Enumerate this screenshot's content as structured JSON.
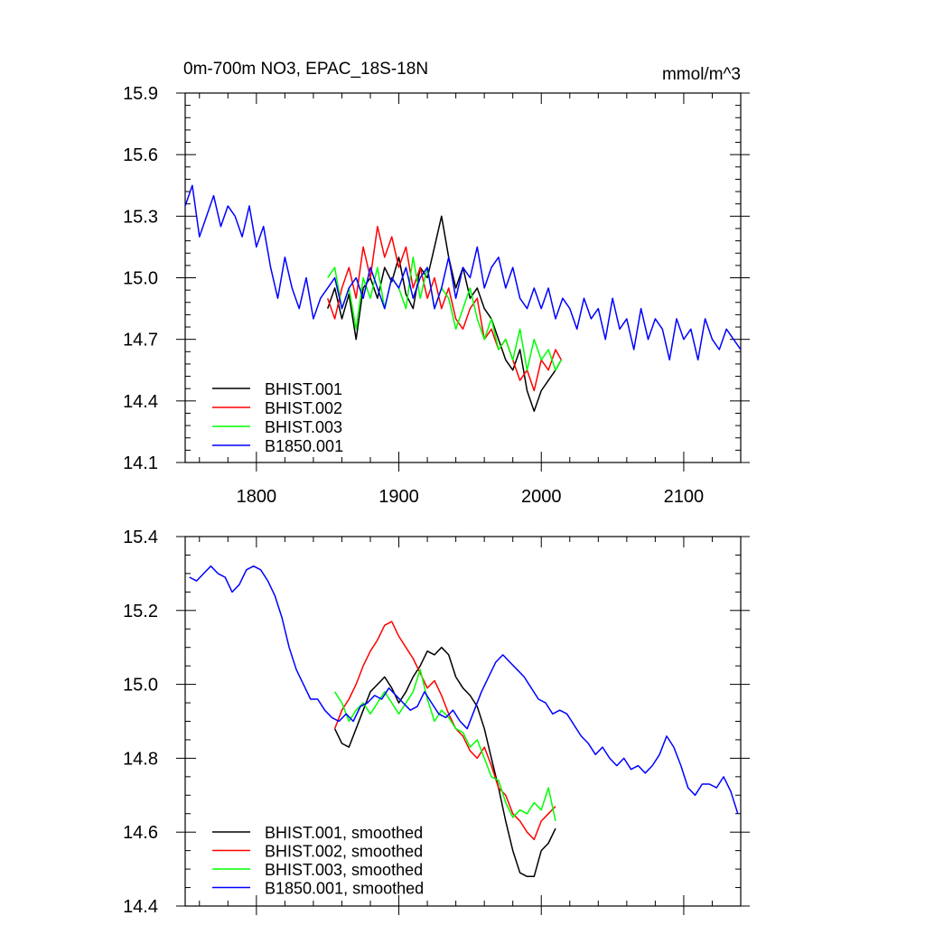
{
  "chart_data": [
    {
      "type": "line",
      "title": "0m-700m NO3, EPAC_18S-18N",
      "units": "mmol/m^3",
      "xlim": [
        1750,
        2140
      ],
      "ylim": [
        14.1,
        15.9
      ],
      "xticks": [
        1800,
        1900,
        2000,
        2100
      ],
      "yticks": [
        14.1,
        14.4,
        14.7,
        15.0,
        15.3,
        15.6,
        15.9
      ],
      "ytick_labels": [
        "14.1",
        "14.4",
        "14.7",
        "15.0",
        "15.3",
        "15.6",
        "15.9"
      ],
      "xtick_labels": [
        "1800",
        "1900",
        "2000",
        "2100"
      ],
      "legend_position": "bottom-left",
      "series": [
        {
          "name": "BHIST.001",
          "color": "#000000",
          "x": [
            1850,
            1855,
            1860,
            1865,
            1870,
            1875,
            1880,
            1885,
            1890,
            1895,
            1900,
            1905,
            1910,
            1915,
            1920,
            1925,
            1930,
            1935,
            1940,
            1945,
            1950,
            1955,
            1960,
            1965,
            1970,
            1975,
            1980,
            1985,
            1990,
            1995,
            2000,
            2005,
            2010,
            2014
          ],
          "y": [
            14.85,
            14.95,
            14.8,
            14.92,
            14.7,
            14.95,
            15.0,
            14.9,
            15.05,
            14.98,
            15.1,
            14.92,
            14.85,
            15.05,
            15.0,
            15.15,
            15.3,
            15.1,
            14.95,
            15.05,
            14.9,
            14.95,
            14.85,
            14.8,
            14.7,
            14.6,
            14.55,
            14.65,
            14.45,
            14.35,
            14.45,
            14.5,
            14.55,
            14.6
          ]
        },
        {
          "name": "BHIST.002",
          "color": "#ff0000",
          "x": [
            1850,
            1855,
            1860,
            1865,
            1870,
            1875,
            1880,
            1885,
            1890,
            1895,
            1900,
            1905,
            1910,
            1915,
            1920,
            1925,
            1930,
            1935,
            1940,
            1945,
            1950,
            1955,
            1960,
            1965,
            1970,
            1975,
            1980,
            1985,
            1990,
            1995,
            2000,
            2005,
            2010,
            2014
          ],
          "y": [
            14.9,
            14.8,
            14.95,
            15.05,
            14.9,
            15.15,
            15.0,
            15.25,
            15.1,
            15.2,
            15.05,
            15.15,
            14.95,
            15.05,
            14.9,
            15.0,
            14.85,
            14.95,
            14.8,
            14.75,
            14.85,
            14.9,
            14.7,
            14.75,
            14.65,
            14.7,
            14.6,
            14.5,
            14.55,
            14.45,
            14.6,
            14.55,
            14.65,
            14.6
          ]
        },
        {
          "name": "BHIST.003",
          "color": "#00ff00",
          "x": [
            1850,
            1855,
            1860,
            1865,
            1870,
            1875,
            1880,
            1885,
            1890,
            1895,
            1900,
            1905,
            1910,
            1915,
            1920,
            1925,
            1930,
            1935,
            1940,
            1945,
            1950,
            1955,
            1960,
            1965,
            1970,
            1975,
            1980,
            1985,
            1990,
            1995,
            2000,
            2005,
            2010,
            2014
          ],
          "y": [
            15.0,
            15.05,
            14.85,
            14.95,
            14.75,
            15.0,
            14.9,
            15.05,
            14.85,
            15.0,
            14.95,
            14.85,
            15.1,
            14.9,
            15.05,
            14.85,
            14.95,
            14.9,
            14.75,
            14.85,
            14.95,
            14.8,
            14.7,
            14.8,
            14.65,
            14.7,
            14.6,
            14.75,
            14.55,
            14.7,
            14.6,
            14.65,
            14.55,
            14.6
          ]
        },
        {
          "name": "B1850.001",
          "color": "#0000ff",
          "x": [
            1750,
            1755,
            1760,
            1765,
            1770,
            1775,
            1780,
            1785,
            1790,
            1795,
            1800,
            1805,
            1810,
            1815,
            1820,
            1825,
            1830,
            1835,
            1840,
            1845,
            1850,
            1855,
            1860,
            1865,
            1870,
            1875,
            1880,
            1885,
            1890,
            1895,
            1900,
            1905,
            1910,
            1915,
            1920,
            1925,
            1930,
            1935,
            1940,
            1945,
            1950,
            1955,
            1960,
            1965,
            1970,
            1975,
            1980,
            1985,
            1990,
            1995,
            2000,
            2005,
            2010,
            2015,
            2020,
            2025,
            2030,
            2035,
            2040,
            2045,
            2050,
            2055,
            2060,
            2065,
            2070,
            2075,
            2080,
            2085,
            2090,
            2095,
            2100,
            2105,
            2110,
            2115,
            2120,
            2125,
            2130,
            2135,
            2140
          ],
          "y": [
            15.35,
            15.45,
            15.2,
            15.3,
            15.4,
            15.25,
            15.35,
            15.3,
            15.2,
            15.35,
            15.15,
            15.25,
            15.05,
            14.9,
            15.1,
            14.95,
            14.85,
            15.0,
            14.8,
            14.9,
            14.95,
            15.0,
            14.85,
            14.95,
            15.0,
            14.9,
            15.05,
            14.95,
            14.85,
            15.0,
            14.95,
            15.05,
            14.9,
            15.0,
            15.05,
            14.85,
            14.95,
            15.1,
            14.9,
            15.05,
            15.0,
            15.15,
            14.95,
            15.05,
            15.1,
            14.95,
            15.05,
            14.9,
            14.85,
            14.95,
            14.85,
            14.95,
            14.8,
            14.9,
            14.85,
            14.75,
            14.9,
            14.8,
            14.85,
            14.7,
            14.9,
            14.75,
            14.8,
            14.65,
            14.85,
            14.7,
            14.8,
            14.75,
            14.6,
            14.8,
            14.7,
            14.75,
            14.6,
            14.8,
            14.7,
            14.65,
            14.75,
            14.7,
            14.65
          ]
        }
      ]
    },
    {
      "type": "line",
      "title": "",
      "xlim": [
        1750,
        2140
      ],
      "ylim": [
        14.4,
        15.4
      ],
      "xticks": [
        1800,
        1900,
        2000,
        2100
      ],
      "yticks": [
        14.4,
        14.6,
        14.8,
        15.0,
        15.2,
        15.4
      ],
      "ytick_labels": [
        "14.4",
        "14.6",
        "14.8",
        "15.0",
        "15.2",
        "15.4"
      ],
      "legend_position": "bottom-left",
      "series": [
        {
          "name": "BHIST.001, smoothed",
          "color": "#000000",
          "x": [
            1855,
            1860,
            1865,
            1870,
            1875,
            1880,
            1885,
            1890,
            1895,
            1900,
            1905,
            1910,
            1915,
            1920,
            1925,
            1930,
            1935,
            1940,
            1945,
            1950,
            1955,
            1960,
            1965,
            1970,
            1975,
            1980,
            1985,
            1990,
            1995,
            2000,
            2005,
            2010
          ],
          "y": [
            14.88,
            14.84,
            14.83,
            14.88,
            14.93,
            14.98,
            15.0,
            15.02,
            14.99,
            14.95,
            14.98,
            15.02,
            15.05,
            15.09,
            15.08,
            15.1,
            15.08,
            15.02,
            14.99,
            14.97,
            14.94,
            14.88,
            14.8,
            14.72,
            14.63,
            14.55,
            14.49,
            14.48,
            14.48,
            14.55,
            14.57,
            14.61
          ]
        },
        {
          "name": "BHIST.002, smoothed",
          "color": "#ff0000",
          "x": [
            1855,
            1860,
            1865,
            1870,
            1875,
            1880,
            1885,
            1890,
            1895,
            1900,
            1905,
            1910,
            1915,
            1920,
            1925,
            1930,
            1935,
            1940,
            1945,
            1950,
            1955,
            1960,
            1965,
            1970,
            1975,
            1980,
            1985,
            1990,
            1995,
            2000,
            2005,
            2010
          ],
          "y": [
            14.88,
            14.93,
            14.96,
            15.0,
            15.05,
            15.09,
            15.12,
            15.16,
            15.17,
            15.13,
            15.1,
            15.07,
            15.03,
            14.99,
            15.01,
            14.97,
            14.92,
            14.88,
            14.86,
            14.82,
            14.8,
            14.83,
            14.78,
            14.72,
            14.7,
            14.65,
            14.63,
            14.6,
            14.58,
            14.63,
            14.65,
            14.67
          ]
        },
        {
          "name": "BHIST.003, smoothed",
          "color": "#00ff00",
          "x": [
            1855,
            1860,
            1865,
            1870,
            1875,
            1880,
            1885,
            1890,
            1895,
            1900,
            1905,
            1910,
            1915,
            1920,
            1925,
            1930,
            1935,
            1940,
            1945,
            1950,
            1955,
            1960,
            1965,
            1970,
            1975,
            1980,
            1985,
            1990,
            1995,
            2000,
            2005,
            2010
          ],
          "y": [
            14.98,
            14.95,
            14.9,
            14.93,
            14.95,
            14.92,
            14.95,
            14.98,
            14.95,
            14.92,
            14.95,
            14.98,
            15.04,
            14.96,
            14.9,
            14.93,
            14.91,
            14.88,
            14.87,
            14.83,
            14.85,
            14.8,
            14.75,
            14.74,
            14.68,
            14.64,
            14.66,
            14.65,
            14.68,
            14.66,
            14.72,
            14.63
          ]
        },
        {
          "name": "B1850.001, smoothed",
          "color": "#0000ff",
          "x": [
            1753,
            1758,
            1763,
            1768,
            1773,
            1778,
            1783,
            1788,
            1793,
            1798,
            1803,
            1808,
            1813,
            1818,
            1823,
            1828,
            1833,
            1838,
            1843,
            1848,
            1853,
            1858,
            1863,
            1868,
            1873,
            1878,
            1883,
            1888,
            1893,
            1898,
            1903,
            1908,
            1913,
            1918,
            1923,
            1928,
            1933,
            1938,
            1943,
            1948,
            1953,
            1958,
            1963,
            1968,
            1973,
            1978,
            1983,
            1988,
            1993,
            1998,
            2003,
            2008,
            2013,
            2018,
            2023,
            2028,
            2033,
            2038,
            2043,
            2048,
            2053,
            2058,
            2063,
            2068,
            2073,
            2078,
            2083,
            2088,
            2093,
            2098,
            2103,
            2108,
            2113,
            2118,
            2123,
            2128,
            2133,
            2138
          ],
          "y": [
            15.29,
            15.28,
            15.3,
            15.32,
            15.3,
            15.29,
            15.25,
            15.27,
            15.31,
            15.32,
            15.31,
            15.28,
            15.24,
            15.18,
            15.1,
            15.04,
            15.0,
            14.96,
            14.96,
            14.93,
            14.91,
            14.9,
            14.92,
            14.9,
            14.94,
            14.95,
            14.97,
            14.96,
            14.99,
            14.97,
            14.95,
            14.93,
            14.94,
            14.98,
            14.95,
            14.92,
            14.91,
            14.93,
            14.9,
            14.88,
            14.93,
            14.98,
            15.02,
            15.06,
            15.08,
            15.06,
            15.04,
            15.02,
            14.99,
            14.96,
            14.95,
            14.92,
            14.93,
            14.92,
            14.89,
            14.86,
            14.84,
            14.81,
            14.83,
            14.8,
            14.78,
            14.8,
            14.77,
            14.78,
            14.76,
            14.78,
            14.81,
            14.86,
            14.83,
            14.78,
            14.72,
            14.7,
            14.73,
            14.73,
            14.72,
            14.75,
            14.71,
            14.65
          ]
        }
      ]
    }
  ]
}
